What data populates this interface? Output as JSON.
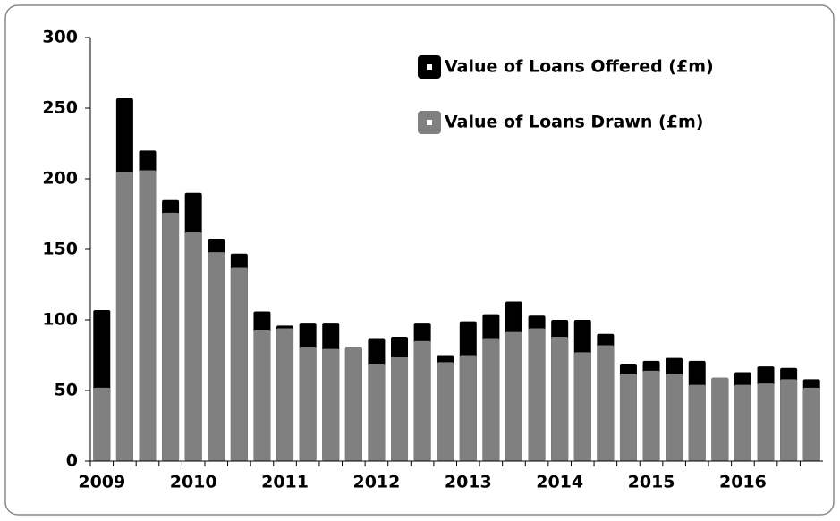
{
  "chart_data": {
    "type": "bar",
    "categories": [
      "2009",
      null,
      null,
      null,
      "2010",
      null,
      null,
      null,
      "2011",
      null,
      null,
      null,
      "2012",
      null,
      null,
      null,
      "2013",
      null,
      null,
      null,
      "2014",
      null,
      null,
      null,
      "2015",
      null,
      null,
      null,
      "2016",
      null,
      null,
      null
    ],
    "series": [
      {
        "name": "Value of Loans Offered (£m)",
        "color": "#000000",
        "values": [
          107,
          257,
          220,
          185,
          190,
          157,
          147,
          106,
          96,
          98,
          98,
          81,
          87,
          88,
          98,
          75,
          99,
          104,
          113,
          103,
          100,
          100,
          90,
          69,
          71,
          73,
          71,
          59,
          63,
          67,
          66,
          58
        ]
      },
      {
        "name": "Value of Loans Drawn (£m)",
        "color": "#808080",
        "values": [
          52,
          205,
          206,
          176,
          162,
          148,
          137,
          93,
          94,
          81,
          80,
          81,
          69,
          74,
          85,
          70,
          75,
          87,
          92,
          94,
          88,
          77,
          82,
          62,
          64,
          62,
          54,
          59,
          54,
          55,
          58,
          52
        ]
      }
    ],
    "ylim": [
      0,
      300
    ],
    "yticks": [
      0,
      50,
      100,
      150,
      200,
      250,
      300
    ],
    "grid": false,
    "legend": "top-right"
  }
}
